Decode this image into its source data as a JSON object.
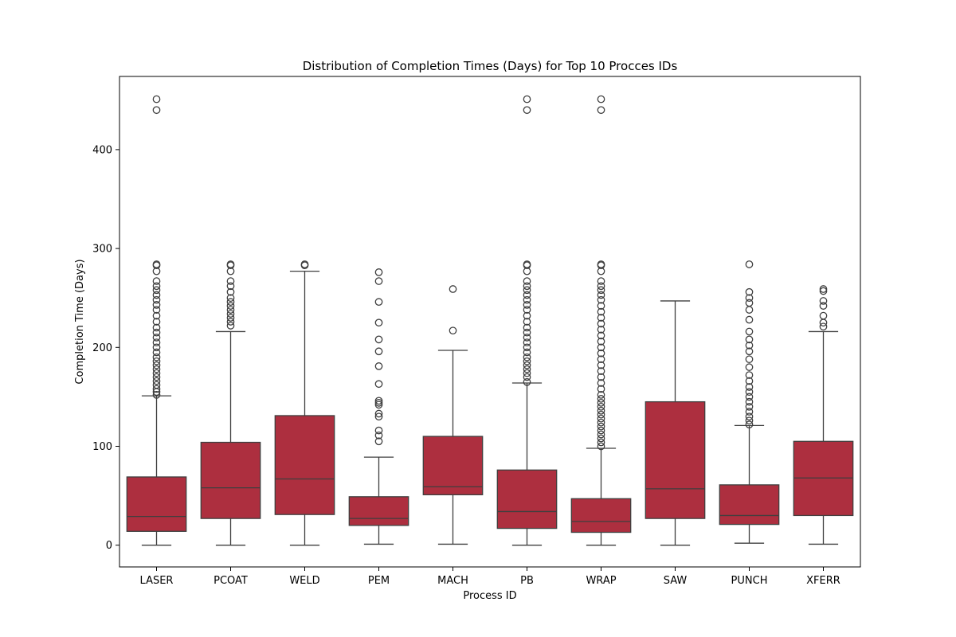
{
  "chart_data": {
    "type": "boxplot",
    "title": "Distribution of Completion Times (Days) for Top 10 Procces IDs",
    "xlabel": "Process ID",
    "ylabel": "Completion Time (Days)",
    "ylim": [
      -22,
      474
    ],
    "yticks": [
      0,
      100,
      200,
      300,
      400
    ],
    "grid": false,
    "legend": "none",
    "box_color": "#ad2f3f",
    "line_color": "#3f3f3f",
    "categories": [
      "LASER",
      "PCOAT",
      "WELD",
      "PEM",
      "MACH",
      "PB",
      "WRAP",
      "SAW",
      "PUNCH",
      "XFERR"
    ],
    "boxes": [
      {
        "category": "LASER",
        "whisker_low": 0,
        "q1": 14,
        "median": 29,
        "q3": 69,
        "whisker_high": 151,
        "outliers": [
          152,
          155,
          158,
          162,
          166,
          170,
          174,
          178,
          182,
          186,
          190,
          195,
          200,
          205,
          210,
          215,
          220,
          226,
          232,
          238,
          243,
          248,
          253,
          258,
          262,
          267,
          277,
          283,
          284,
          440,
          451
        ]
      },
      {
        "category": "PCOAT",
        "whisker_low": 0,
        "q1": 27,
        "median": 58,
        "q3": 104,
        "whisker_high": 216,
        "outliers": [
          222,
          226,
          230,
          234,
          238,
          242,
          246,
          250,
          256,
          262,
          267,
          277,
          283,
          284
        ]
      },
      {
        "category": "WELD",
        "whisker_low": 0,
        "q1": 31,
        "median": 67,
        "q3": 131,
        "whisker_high": 277,
        "outliers": [
          283,
          284
        ]
      },
      {
        "category": "PEM",
        "whisker_low": 1,
        "q1": 20,
        "median": 27,
        "q3": 49,
        "whisker_high": 89,
        "outliers": [
          105,
          111,
          116,
          130,
          133,
          142,
          144,
          146,
          163,
          181,
          196,
          208,
          225,
          246,
          267,
          276
        ]
      },
      {
        "category": "MACH",
        "whisker_low": 1,
        "q1": 51,
        "median": 59,
        "q3": 110,
        "whisker_high": 197,
        "outliers": [
          217,
          259
        ]
      },
      {
        "category": "PB",
        "whisker_low": 0,
        "q1": 17,
        "median": 34,
        "q3": 76,
        "whisker_high": 164,
        "outliers": [
          165,
          170,
          174,
          178,
          182,
          186,
          190,
          195,
          200,
          205,
          210,
          215,
          220,
          226,
          232,
          238,
          243,
          248,
          253,
          258,
          262,
          267,
          277,
          283,
          284,
          440,
          451
        ]
      },
      {
        "category": "WRAP",
        "whisker_low": 0,
        "q1": 13,
        "median": 24,
        "q3": 47,
        "whisker_high": 98,
        "outliers": [
          100,
          104,
          108,
          112,
          116,
          120,
          124,
          128,
          132,
          136,
          140,
          144,
          148,
          152,
          158,
          164,
          170,
          176,
          182,
          188,
          194,
          200,
          206,
          212,
          218,
          224,
          230,
          236,
          242,
          248,
          253,
          258,
          262,
          267,
          277,
          283,
          284,
          440,
          451
        ]
      },
      {
        "category": "SAW",
        "whisker_low": 0,
        "q1": 27,
        "median": 57,
        "q3": 145,
        "whisker_high": 247,
        "outliers": []
      },
      {
        "category": "PUNCH",
        "whisker_low": 2,
        "q1": 21,
        "median": 30,
        "q3": 61,
        "whisker_high": 121,
        "outliers": [
          122,
          126,
          130,
          135,
          140,
          145,
          150,
          155,
          160,
          166,
          172,
          180,
          188,
          196,
          202,
          208,
          216,
          228,
          238,
          245,
          250,
          256,
          284
        ]
      },
      {
        "category": "XFERR",
        "whisker_low": 1,
        "q1": 30,
        "median": 68,
        "q3": 105,
        "whisker_high": 216,
        "outliers": [
          221,
          225,
          232,
          242,
          247,
          257,
          259
        ]
      }
    ]
  }
}
